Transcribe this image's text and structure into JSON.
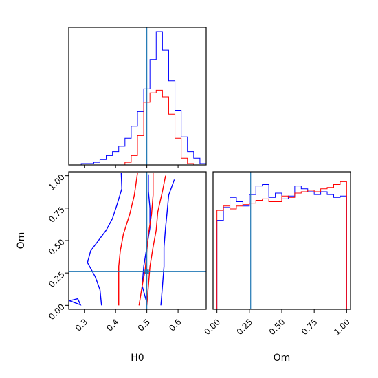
{
  "chart_data": {
    "type": "corner",
    "params": [
      "H0",
      "Om"
    ],
    "truth": {
      "H0": 0.5,
      "Om": 0.26
    },
    "truth_color": "#1f77b4",
    "series": [
      {
        "color": "#0000ff"
      },
      {
        "color": "#ff0000"
      }
    ],
    "panels": [
      {
        "id": "hist-H0",
        "type": "histogram",
        "param": "H0",
        "xlim": [
          0.25,
          0.69
        ],
        "x_ticks": [
          0.3,
          0.4,
          0.5,
          0.6
        ],
        "x_tick_labels_shown": false,
        "bins": [
          0.25,
          0.27,
          0.29,
          0.31,
          0.33,
          0.35,
          0.37,
          0.39,
          0.41,
          0.43,
          0.45,
          0.47,
          0.49,
          0.51,
          0.53,
          0.55,
          0.57,
          0.59,
          0.61,
          0.63,
          0.65,
          0.67,
          0.69
        ],
        "series_counts": [
          [
            0,
            0,
            0.01,
            0.01,
            0.02,
            0.04,
            0.07,
            0.1,
            0.14,
            0.2,
            0.29,
            0.4,
            0.57,
            0.79,
            1.0,
            0.86,
            0.63,
            0.41,
            0.21,
            0.1,
            0.05,
            0.01
          ],
          [
            0,
            0,
            0,
            0,
            0,
            0,
            0,
            0,
            0,
            0.02,
            0.07,
            0.22,
            0.47,
            0.54,
            0.56,
            0.51,
            0.38,
            0.2,
            0.05,
            0.01,
            0,
            0
          ]
        ]
      },
      {
        "id": "hist-Om",
        "type": "histogram",
        "param": "Om",
        "xlim": [
          -0.03,
          1.03
        ],
        "x_ticks": [
          0.0,
          0.25,
          0.5,
          0.75,
          1.0
        ],
        "x_tick_labels": [
          "0.00",
          "0.25",
          "0.50",
          "0.75",
          "1.00"
        ],
        "xlabel": "Om",
        "bins": [
          0,
          0.05,
          0.1,
          0.15,
          0.2,
          0.25,
          0.3,
          0.35,
          0.4,
          0.45,
          0.5,
          0.55,
          0.6,
          0.65,
          0.7,
          0.75,
          0.8,
          0.85,
          0.9,
          0.95,
          1.0
        ],
        "series_counts": [
          [
            0.62,
            0.71,
            0.78,
            0.75,
            0.72,
            0.8,
            0.86,
            0.87,
            0.78,
            0.81,
            0.77,
            0.79,
            0.86,
            0.84,
            0.82,
            0.8,
            0.82,
            0.8,
            0.78,
            0.79
          ],
          [
            0.69,
            0.72,
            0.7,
            0.72,
            0.73,
            0.74,
            0.76,
            0.77,
            0.75,
            0.75,
            0.79,
            0.78,
            0.81,
            0.82,
            0.83,
            0.82,
            0.84,
            0.85,
            0.87,
            0.89
          ]
        ]
      },
      {
        "id": "contour-H0-Om",
        "type": "contour",
        "xparam": "H0",
        "yparam": "Om",
        "xlim": [
          0.25,
          0.69
        ],
        "ylim": [
          -0.03,
          1.03
        ],
        "x_ticks": [
          0.3,
          0.4,
          0.5,
          0.6
        ],
        "x_tick_labels": [
          "0.3",
          "0.4",
          "0.5",
          "0.6"
        ],
        "y_ticks": [
          0.0,
          0.25,
          0.5,
          0.75,
          1.0
        ],
        "y_tick_labels": [
          "0.00",
          "0.25",
          "0.50",
          "0.75",
          "1.00"
        ],
        "xlabel": "H0",
        "ylabel": "Om",
        "contours": [
          {
            "series": 0,
            "level": "outer",
            "points": [
              [
                0.418,
                1.02
              ],
              [
                0.42,
                0.9
              ],
              [
                0.405,
                0.78
              ],
              [
                0.39,
                0.67
              ],
              [
                0.37,
                0.58
              ],
              [
                0.345,
                0.5
              ],
              [
                0.32,
                0.42
              ],
              [
                0.31,
                0.33
              ],
              [
                0.335,
                0.22
              ],
              [
                0.35,
                0.12
              ],
              [
                0.355,
                0.0
              ]
            ]
          },
          {
            "series": 0,
            "level": "outer-right",
            "points": [
              [
                0.588,
                0.97
              ],
              [
                0.57,
                0.85
              ],
              [
                0.565,
                0.72
              ],
              [
                0.56,
                0.6
              ],
              [
                0.555,
                0.45
              ],
              [
                0.555,
                0.3
              ],
              [
                0.55,
                0.15
              ],
              [
                0.545,
                0.0
              ]
            ]
          },
          {
            "series": 0,
            "level": "inner",
            "points": [
              [
                0.505,
                1.01
              ],
              [
                0.505,
                0.88
              ],
              [
                0.51,
                0.75
              ],
              [
                0.51,
                0.6
              ],
              [
                0.5,
                0.45
              ],
              [
                0.49,
                0.3
              ],
              [
                0.485,
                0.15
              ],
              [
                0.5,
                0.02
              ]
            ]
          },
          {
            "series": 1,
            "level": "outer",
            "points": [
              [
                0.47,
                1.02
              ],
              [
                0.46,
                0.85
              ],
              [
                0.445,
                0.7
              ],
              [
                0.425,
                0.55
              ],
              [
                0.415,
                0.42
              ],
              [
                0.41,
                0.3
              ],
              [
                0.41,
                0.15
              ],
              [
                0.41,
                0.0
              ]
            ]
          },
          {
            "series": 1,
            "level": "inner",
            "points": [
              [
                0.52,
                1.02
              ],
              [
                0.52,
                0.85
              ],
              [
                0.515,
                0.7
              ],
              [
                0.505,
                0.55
              ],
              [
                0.5,
                0.42
              ],
              [
                0.495,
                0.28
              ],
              [
                0.485,
                0.15
              ],
              [
                0.475,
                0.0
              ]
            ]
          },
          {
            "series": 1,
            "level": "outer-right",
            "points": [
              [
                0.56,
                1.0
              ],
              [
                0.55,
                0.88
              ],
              [
                0.535,
                0.72
              ],
              [
                0.53,
                0.58
              ],
              [
                0.52,
                0.45
              ],
              [
                0.51,
                0.3
              ],
              [
                0.505,
                0.15
              ],
              [
                0.5,
                0.0
              ]
            ]
          }
        ],
        "points": [
          {
            "series": 0,
            "x": 0.27,
            "y": 0.02
          }
        ]
      }
    ]
  }
}
